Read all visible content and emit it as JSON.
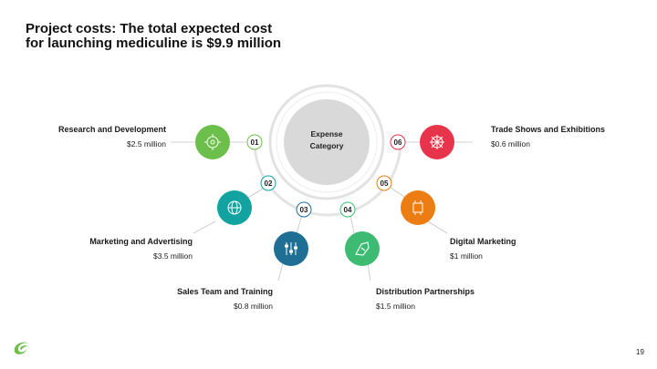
{
  "title": {
    "line1": "Project costs: The total expected cost",
    "line2": "for launching mediculine is $9.9 million"
  },
  "center": {
    "line1": "Expense",
    "line2": "Category"
  },
  "categories": [
    {
      "num": "01",
      "name": "Research and Development",
      "amount": "$2.5 million",
      "color": "#6cbf4b",
      "icon": "research-icon"
    },
    {
      "num": "02",
      "name": "Marketing and Advertising",
      "amount": "$3.5 million",
      "color": "#12a3a0",
      "icon": "globe-icon"
    },
    {
      "num": "03",
      "name": "Sales Team and Training",
      "amount": "$0.8 million",
      "color": "#1f6f95",
      "icon": "sliders-icon"
    },
    {
      "num": "04",
      "name": "Distribution Partnerships",
      "amount": "$1.5 million",
      "color": "#3dbb73",
      "icon": "handshake-icon"
    },
    {
      "num": "05",
      "name": "Digital Marketing",
      "amount": "$1 million",
      "color": "#ec7d12",
      "icon": "chip-icon"
    },
    {
      "num": "06",
      "name": "Trade Shows and Exhibitions",
      "amount": "$0.6 million",
      "color": "#e8344a",
      "icon": "presentation-icon"
    }
  ],
  "page_number": "19",
  "colors": {
    "ring": "#e2e2e2",
    "center_fill": "#d9d9d9",
    "connector": "#c4c4c4"
  }
}
